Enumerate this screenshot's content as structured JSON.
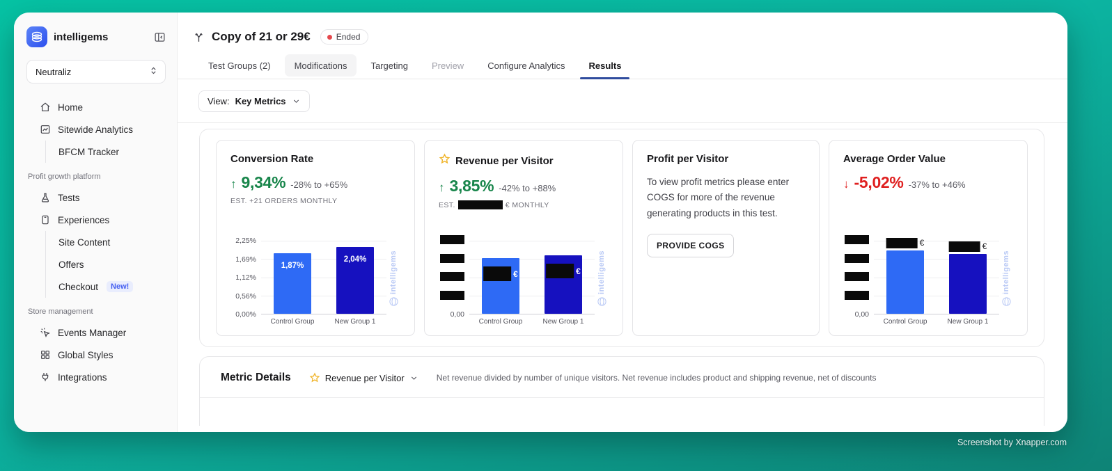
{
  "watermark_text": "Screenshot by Xnapper.com",
  "colors": {
    "accent_navy": "#2f4c9e",
    "positive_green": "#17854a",
    "negative_red": "#df1f1f",
    "bar_control_blue": "#2e6af5",
    "bar_variant_navy": "#1611bf",
    "badge_new_blue": "#4660f1",
    "status_dot_red": "#e5484d",
    "chart_watermark_blue": "#b9c9f5"
  },
  "sidebar": {
    "brand": "intelligems",
    "workspace": "Neutraliz",
    "groups": [
      {
        "label": null,
        "items": [
          {
            "label": "Home",
            "icon": "home-icon"
          },
          {
            "label": "Sitewide Analytics",
            "icon": "analytics-icon"
          },
          {
            "label": "BFCM Tracker",
            "child": true
          }
        ]
      },
      {
        "label": "Profit growth platform",
        "items": [
          {
            "label": "Tests",
            "icon": "flask-icon"
          },
          {
            "label": "Experiences",
            "icon": "experiences-icon"
          },
          {
            "label": "Site Content",
            "child": true
          },
          {
            "label": "Offers",
            "child": true
          },
          {
            "label": "Checkout",
            "child": true,
            "badge": "New!"
          }
        ]
      },
      {
        "label": "Store management",
        "items": [
          {
            "label": "Events Manager",
            "icon": "events-icon"
          },
          {
            "label": "Global Styles",
            "icon": "grid-icon"
          },
          {
            "label": "Integrations",
            "icon": "plug-icon"
          }
        ]
      }
    ]
  },
  "header": {
    "title": "Copy of 21 or 29€",
    "status_label": "Ended"
  },
  "tabs": [
    {
      "label": "Test Groups (2)",
      "state": "normal"
    },
    {
      "label": "Modifications",
      "state": "highlight"
    },
    {
      "label": "Targeting",
      "state": "normal"
    },
    {
      "label": "Preview",
      "state": "disabled"
    },
    {
      "label": "Configure Analytics",
      "state": "normal"
    },
    {
      "label": "Results",
      "state": "active"
    }
  ],
  "toolbar": {
    "view_prefix": "View:",
    "view_value": "Key Metrics"
  },
  "cards": [
    {
      "title": "Conversion Rate",
      "starred": false,
      "arrow": "↑",
      "delta": "9,34%",
      "direction": "up",
      "range": "-28% to +65%",
      "estimate_text": "EST. +21 ORDERS MONTHLY"
    },
    {
      "title": "Revenue per Visitor",
      "starred": true,
      "arrow": "↑",
      "delta": "3,85%",
      "direction": "up",
      "range": "-42% to +88%",
      "estimate_prefix": "EST.",
      "estimate_redacted": true,
      "estimate_suffix": "€ MONTHLY"
    },
    {
      "title": "Profit per Visitor",
      "message": "To view profit metrics please enter COGS for more of the revenue generating products in this test.",
      "button_label": "PROVIDE COGS"
    },
    {
      "title": "Average Order Value",
      "arrow": "↓",
      "delta": "-5,02%",
      "direction": "down",
      "range": "-37% to +46%"
    }
  ],
  "chart_data": [
    {
      "type": "bar",
      "title": "Conversion Rate by group",
      "categories": [
        "Control Group",
        "New Group 1"
      ],
      "values": [
        1.87,
        2.04
      ],
      "ylim": [
        0,
        2.25
      ],
      "value_labels": [
        "1,87%",
        "2,04%"
      ],
      "yticks": [
        {
          "label": "2,25%"
        },
        {
          "label": "1,69%"
        },
        {
          "label": "1,12%"
        },
        {
          "label": "0,56%"
        },
        {
          "label": "0,00%"
        }
      ],
      "bar_heights_pct": [
        83,
        91
      ],
      "bar_colors": [
        "#2e6af5",
        "#1611bf"
      ],
      "label_position": "inside",
      "redacted": false,
      "currency_suffix": "",
      "watermark": "intelligems"
    },
    {
      "type": "bar",
      "title": "Revenue per Visitor by group",
      "categories": [
        "Control Group",
        "New Group 1"
      ],
      "values": [
        null,
        null
      ],
      "value_labels": [
        "[redacted] €",
        "[redacted] €"
      ],
      "yticks": [
        {
          "redacted": true
        },
        {
          "redacted": true
        },
        {
          "redacted": true
        },
        {
          "redacted": true
        },
        {
          "label": "0,00"
        }
      ],
      "bar_heights_pct": [
        76,
        80
      ],
      "bar_colors": [
        "#2e6af5",
        "#1611bf"
      ],
      "label_position": "inside",
      "redacted": true,
      "currency_suffix": "€",
      "watermark": "intelligems"
    },
    {
      "type": "bar",
      "title": "Average Order Value by group",
      "categories": [
        "Control Group",
        "New Group 1"
      ],
      "values": [
        null,
        null
      ],
      "value_labels": [
        "[redacted] €",
        "[redacted] €"
      ],
      "yticks": [
        {
          "redacted": true
        },
        {
          "redacted": true
        },
        {
          "redacted": true
        },
        {
          "redacted": true
        },
        {
          "label": "0,00"
        }
      ],
      "bar_heights_pct": [
        87,
        82
      ],
      "bar_colors": [
        "#2e6af5",
        "#1611bf"
      ],
      "label_position": "above",
      "redacted": true,
      "currency_suffix": "€",
      "watermark": "intelligems"
    }
  ],
  "metric_details": {
    "title": "Metric Details",
    "selected_metric": "Revenue per Visitor",
    "description": "Net revenue divided by number of unique visitors. Net revenue includes product and shipping revenue, net of discounts"
  }
}
